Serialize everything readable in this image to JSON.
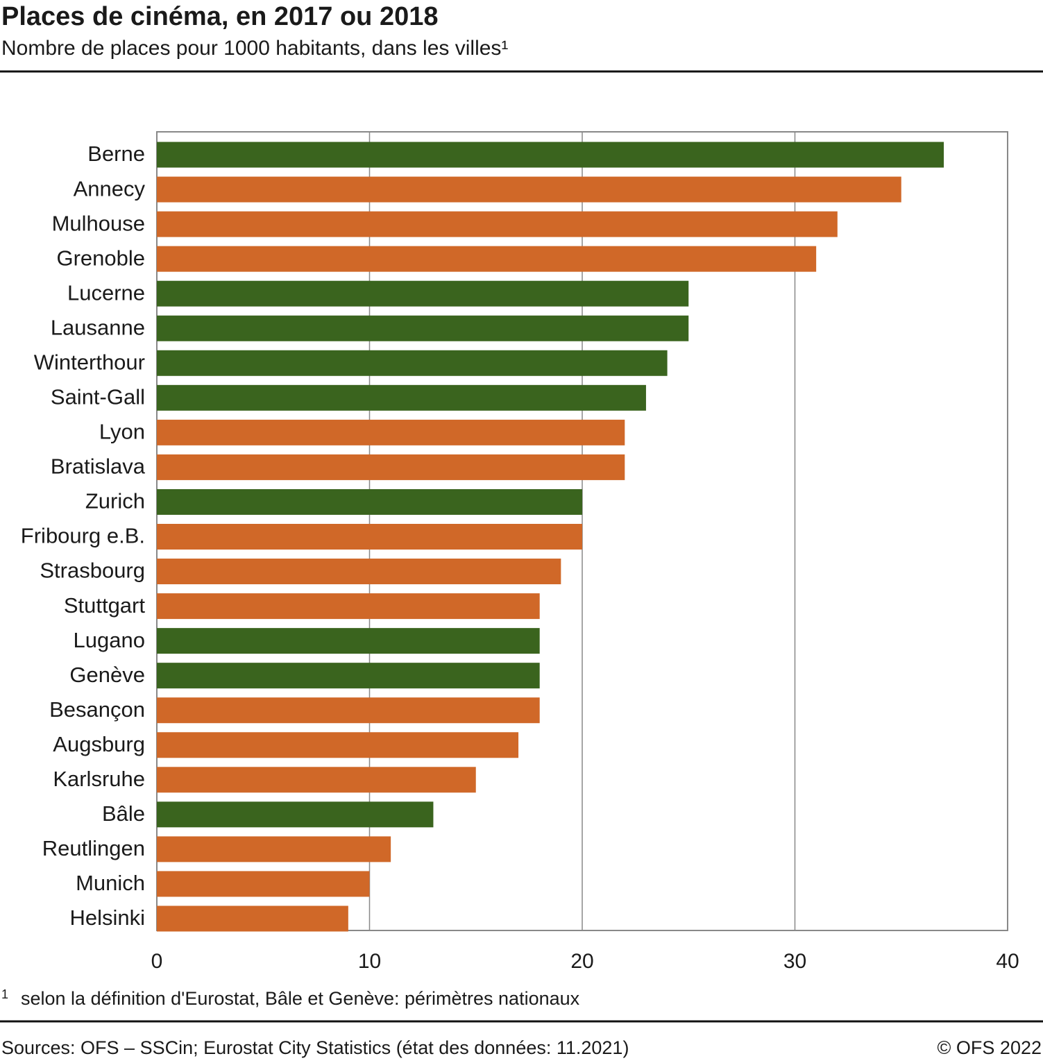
{
  "chart_data": {
    "type": "bar",
    "orientation": "horizontal",
    "title": "Places de cinéma, en 2017 ou 2018",
    "subtitle": "Nombre de places pour 1000 habitants, dans les villes¹",
    "categories": [
      "Berne",
      "Annecy",
      "Mulhouse",
      "Grenoble",
      "Lucerne",
      "Lausanne",
      "Winterthour",
      "Saint-Gall",
      "Lyon",
      "Bratislava",
      "Zurich",
      "Fribourg e.B.",
      "Strasbourg",
      "Stuttgart",
      "Lugano",
      "Genève",
      "Besançon",
      "Augsburg",
      "Karlsruhe",
      "Bâle",
      "Reutlingen",
      "Munich",
      "Helsinki"
    ],
    "values": [
      37,
      35,
      32,
      31,
      25,
      25,
      24,
      23,
      22,
      22,
      20,
      20,
      19,
      18,
      18,
      18,
      18,
      17,
      15,
      13,
      11,
      10,
      9
    ],
    "colors": [
      "#3a641e",
      "#d06828",
      "#d06828",
      "#d06828",
      "#3a641e",
      "#3a641e",
      "#3a641e",
      "#3a641e",
      "#d06828",
      "#d06828",
      "#3a641e",
      "#d06828",
      "#d06828",
      "#d06828",
      "#3a641e",
      "#3a641e",
      "#d06828",
      "#d06828",
      "#d06828",
      "#3a641e",
      "#d06828",
      "#d06828",
      "#d06828"
    ],
    "xlim": [
      0,
      40
    ],
    "xticks": [
      0,
      10,
      20,
      30,
      40
    ],
    "grid": true,
    "footnote_mark": "1",
    "footnote": "selon la définition d'Eurostat, Bâle et Genève: périmètres nationaux",
    "source": "Sources: OFS – SSCin; Eurostat City Statistics (état des données: 11.2021)",
    "copyright": "© OFS 2022"
  }
}
